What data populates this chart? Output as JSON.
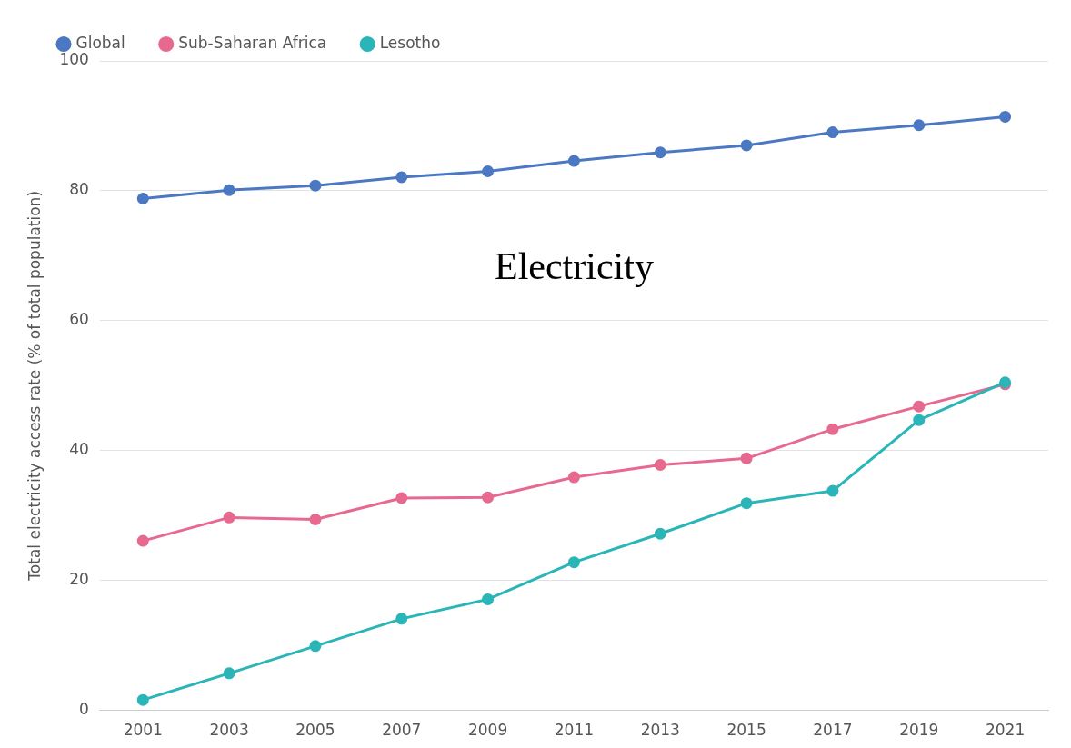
{
  "chart_data": {
    "type": "line",
    "title": "Electricity",
    "ylabel": "Total electricity access rate (% of total population)",
    "categories": [
      "2001",
      "2003",
      "2005",
      "2007",
      "2009",
      "2011",
      "2013",
      "2015",
      "2017",
      "2019",
      "2021"
    ],
    "series": [
      {
        "name": "Global",
        "color": "#4a78c2",
        "values": [
          78.8,
          80.1,
          80.8,
          82.1,
          83.0,
          84.6,
          85.9,
          87.0,
          89.0,
          90.1,
          91.4
        ]
      },
      {
        "name": "Sub-Saharan Africa",
        "color": "#e8698f",
        "values": [
          26.1,
          29.7,
          29.4,
          32.7,
          32.8,
          35.9,
          37.8,
          38.8,
          43.3,
          46.8,
          50.2
        ]
      },
      {
        "name": "Lesotho",
        "color": "#2ab5b8",
        "values": [
          1.6,
          5.7,
          9.9,
          14.1,
          17.1,
          22.8,
          27.2,
          31.9,
          33.8,
          44.7,
          50.5
        ]
      }
    ],
    "ylim": [
      0,
      100
    ],
    "yticks": [
      0,
      20,
      40,
      60,
      80,
      100
    ],
    "grid": "y",
    "legend": "top left",
    "marker": "circle",
    "line_style": "solid"
  }
}
